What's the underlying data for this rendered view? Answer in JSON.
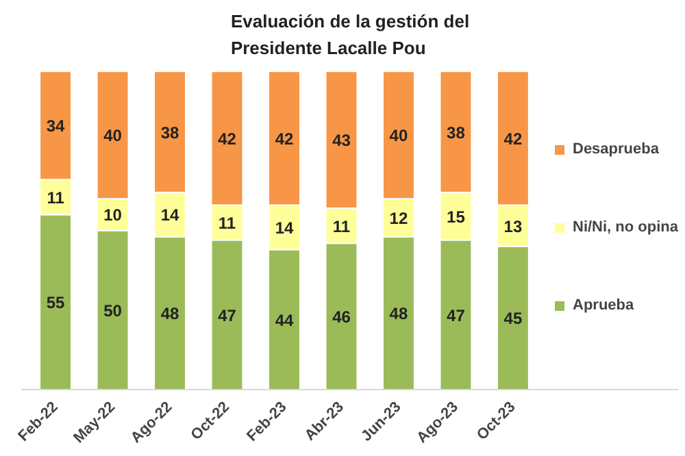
{
  "chart_data": {
    "type": "bar",
    "title": "Evaluación de la gestión del\nPresidente Lacalle Pou",
    "categories": [
      "Feb-22",
      "May-22",
      "Ago-22",
      "Oct-22",
      "Feb-23",
      "Abr-23",
      "Jun-23",
      "Ago-23",
      "Oct-23"
    ],
    "stacked": true,
    "data_labels": true,
    "legend": "right",
    "grid": false,
    "series": [
      {
        "name": "Aprueba",
        "color": "#9bbb59",
        "values": [
          55,
          50,
          48,
          47,
          44,
          46,
          48,
          47,
          45
        ]
      },
      {
        "name": "Ni/Ni, no opina",
        "color": "#ffff99",
        "values": [
          11,
          10,
          14,
          11,
          14,
          11,
          12,
          15,
          13
        ]
      },
      {
        "name": "Desaprueba",
        "color": "#f79646",
        "values": [
          34,
          40,
          38,
          42,
          42,
          43,
          40,
          38,
          42
        ]
      }
    ]
  }
}
